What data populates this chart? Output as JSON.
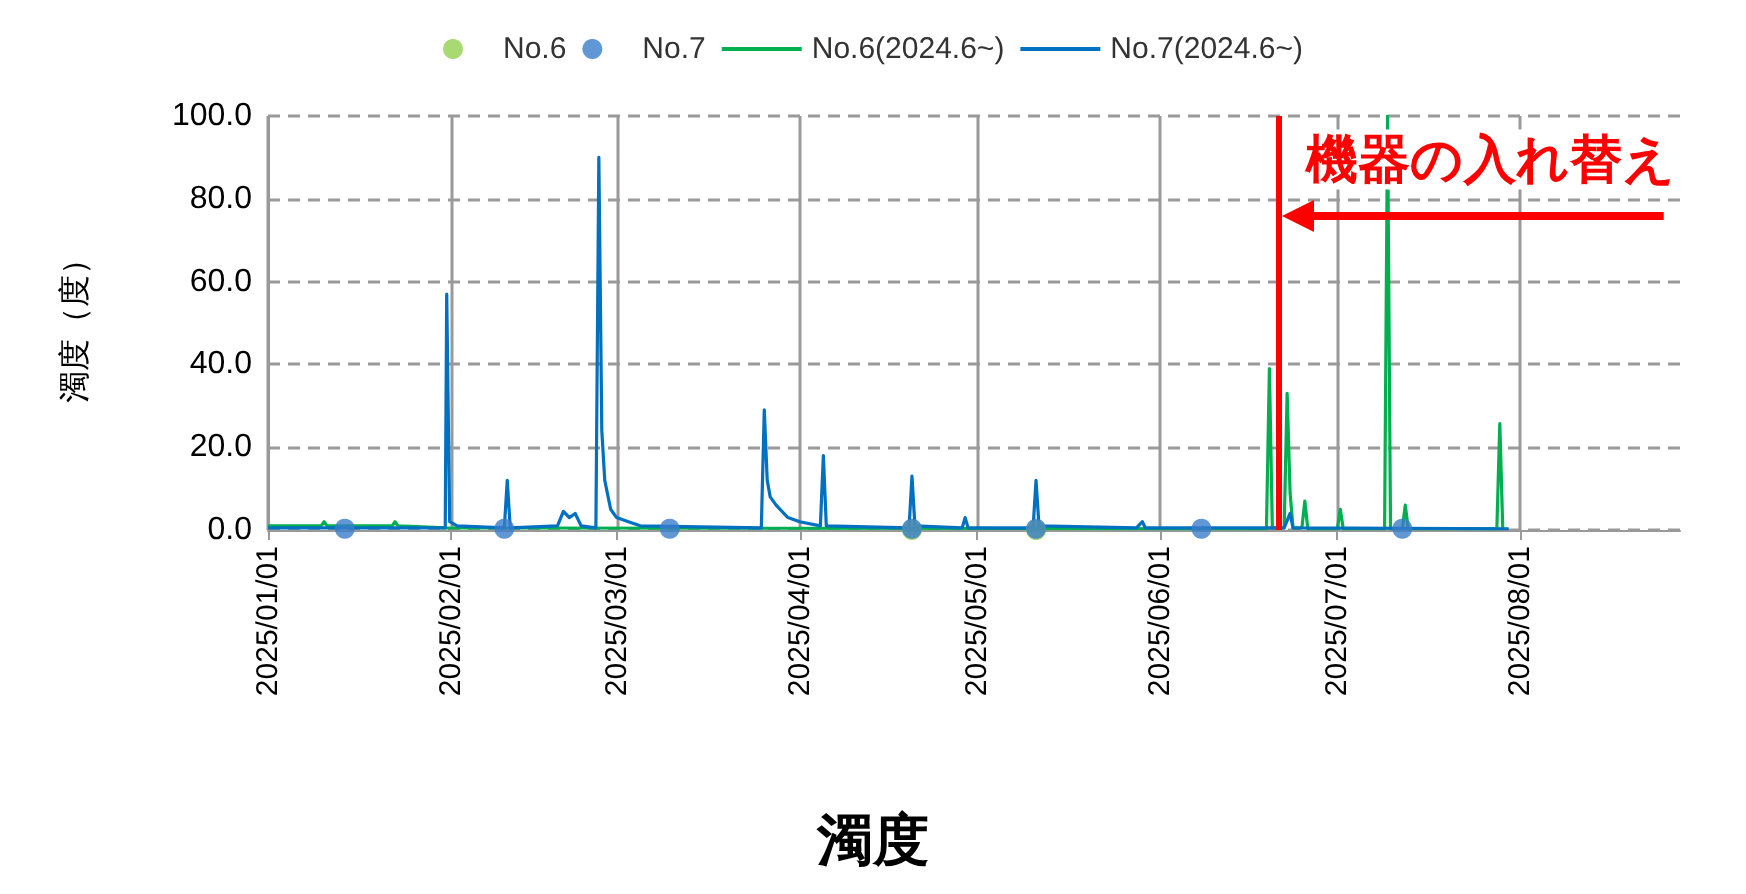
{
  "chart_data": {
    "type": "line",
    "title": "濁度",
    "ylabel": "濁度（度）",
    "xlim": [
      "2025-01-01",
      "2025-08-28"
    ],
    "xticks": [
      {
        "value": "2025-01-01",
        "label": "2025/01/01"
      },
      {
        "value": "2025-02-01",
        "label": "2025/02/01"
      },
      {
        "value": "2025-03-01",
        "label": "2025/03/01"
      },
      {
        "value": "2025-04-01",
        "label": "2025/04/01"
      },
      {
        "value": "2025-05-01",
        "label": "2025/05/01"
      },
      {
        "value": "2025-06-01",
        "label": "2025/06/01"
      },
      {
        "value": "2025-07-01",
        "label": "2025/07/01"
      },
      {
        "value": "2025-08-01",
        "label": "2025/08/01"
      }
    ],
    "ylim": [
      0,
      100
    ],
    "yticks": [
      {
        "value": 0,
        "label": "0.0"
      },
      {
        "value": 20,
        "label": "20.0"
      },
      {
        "value": 40,
        "label": "40.0"
      },
      {
        "value": 60,
        "label": "60.0"
      },
      {
        "value": 80,
        "label": "80.0"
      },
      {
        "value": 100,
        "label": "100.0"
      }
    ],
    "grid": true,
    "legend": "top",
    "series": [
      {
        "name": "No.6",
        "type": "scatter",
        "marker": "circle",
        "color": "#92d050",
        "x": [
          "2025-04-20",
          "2025-05-11"
        ],
        "values": [
          0,
          0
        ]
      },
      {
        "name": "No.7",
        "type": "scatter",
        "marker": "circle",
        "color": "#3a7dc9",
        "x": [
          "2025-01-14",
          "2025-02-10",
          "2025-03-10",
          "2025-04-20",
          "2025-05-11",
          "2025-06-08",
          "2025-07-12"
        ],
        "values": [
          0.3,
          0.3,
          0.3,
          0.3,
          0.3,
          0.3,
          0.3
        ]
      },
      {
        "name": "No.6(2024.6~)",
        "marker": "none",
        "color": "#00b050",
        "x": [
          "2025-01-01",
          "2025-01-10",
          "2025-01-10T12:00",
          "2025-01-11",
          "2025-01-22",
          "2025-01-22T12:00",
          "2025-01-23",
          "2025-01-31",
          "2025-06-19",
          "2025-06-19T12:00",
          "2025-06-20",
          "2025-06-22",
          "2025-06-22T12:00",
          "2025-06-23",
          "2025-06-23T12:00",
          "2025-06-25",
          "2025-06-25T12:00",
          "2025-06-26",
          "2025-07-01",
          "2025-07-01T12:00",
          "2025-07-02",
          "2025-07-09",
          "2025-07-09T12:00",
          "2025-07-10",
          "2025-07-12",
          "2025-07-12T12:00",
          "2025-07-13",
          "2025-07-28",
          "2025-07-28T12:00",
          "2025-07-29"
        ],
        "values": [
          1,
          1,
          2,
          1,
          1,
          2,
          1,
          0.5,
          0.3,
          39,
          0.5,
          0.5,
          33,
          9,
          0.5,
          0.5,
          7,
          0.3,
          0.3,
          5,
          0.3,
          0.3,
          100,
          0.3,
          0.3,
          6,
          0.3,
          0.3,
          25.7,
          0.3
        ]
      },
      {
        "name": "No.7(2024.6~)",
        "marker": "none",
        "color": "#0070c0",
        "x": [
          "2025-01-01",
          "2025-01-31",
          "2025-01-31T06:00",
          "2025-01-31T18:00",
          "2025-02-02",
          "2025-02-10",
          "2025-02-10T12:00",
          "2025-02-11",
          "2025-02-19",
          "2025-02-20",
          "2025-02-21",
          "2025-02-22",
          "2025-02-23",
          "2025-02-25T12:00",
          "2025-02-26",
          "2025-02-26T12:00",
          "2025-02-27",
          "2025-02-28",
          "2025-03-01",
          "2025-03-03",
          "2025-03-05",
          "2025-03-25T12:00",
          "2025-03-26",
          "2025-03-26T12:00",
          "2025-03-27",
          "2025-03-28",
          "2025-03-30",
          "2025-04-01",
          "2025-04-04T12:00",
          "2025-04-05",
          "2025-04-05T12:00",
          "2025-04-19T12:00",
          "2025-04-20",
          "2025-04-20T12:00",
          "2025-04-28T12:00",
          "2025-04-29",
          "2025-04-29T12:00",
          "2025-05-10T12:00",
          "2025-05-11",
          "2025-05-11T12:00",
          "2025-05-28",
          "2025-05-29",
          "2025-05-29T12:00",
          "2025-06-22",
          "2025-06-23",
          "2025-06-23T12:00",
          "2025-07-30"
        ],
        "values": [
          0.5,
          0.5,
          57,
          2,
          1,
          0.5,
          12,
          0.5,
          1,
          4.5,
          3,
          4,
          1,
          0.5,
          90,
          24,
          12,
          5,
          3,
          2,
          1,
          0.5,
          29,
          12,
          8,
          6,
          3,
          2,
          1,
          18,
          1,
          0.5,
          13,
          1,
          0.5,
          3,
          0.5,
          0.5,
          12,
          1,
          0.5,
          2,
          0.5,
          0.5,
          4,
          0.5,
          0.3
        ]
      }
    ],
    "ref_lines": [
      {
        "axis": "x",
        "value": "2025-06-21",
        "label": "機器の入れ替え",
        "color": "#ff0000"
      }
    ]
  }
}
